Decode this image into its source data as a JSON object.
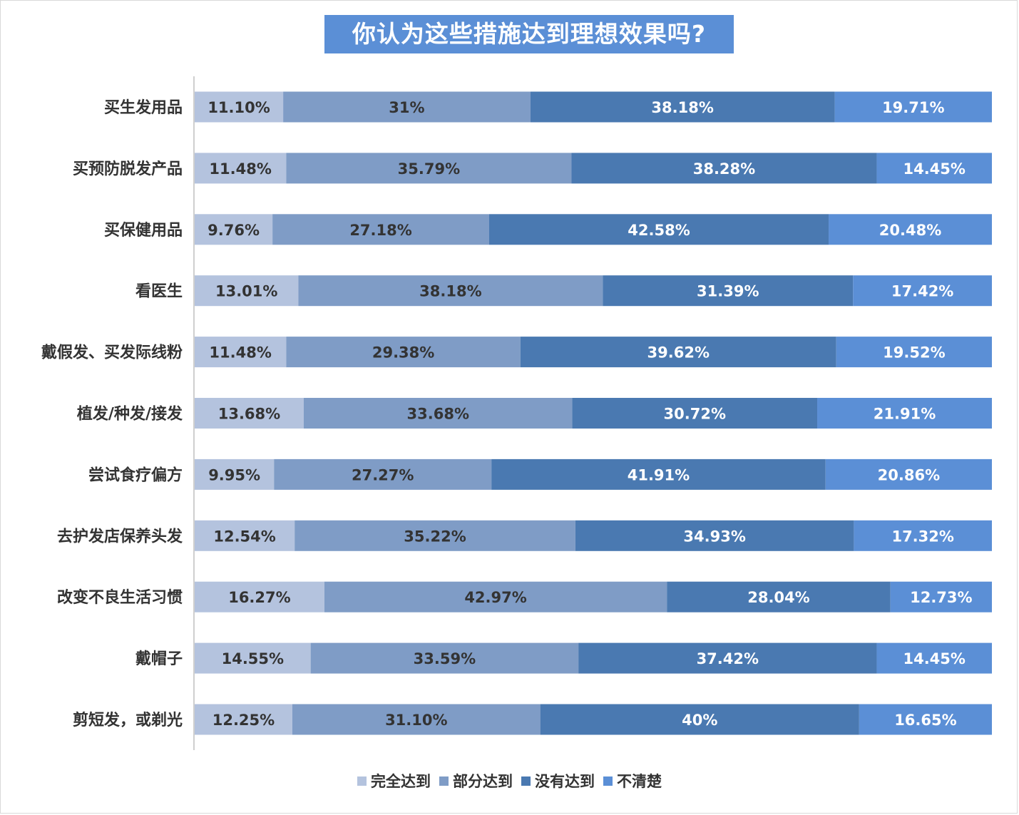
{
  "title": "你认为这些措施达到理想效果吗?",
  "colors": [
    "#b4c3de",
    "#7f9cc6",
    "#4a79b1",
    "#5b8fd6"
  ],
  "label_colors": [
    "#333333",
    "#333333",
    "#ffffff",
    "#ffffff"
  ],
  "chart_data": {
    "type": "bar",
    "orientation": "horizontal",
    "stacked": true,
    "percent": true,
    "title": "你认为这些措施达到理想效果吗?",
    "legend_position": "bottom",
    "categories": [
      "买生发用品",
      "买预防脱发产品",
      "买保健用品",
      "看医生",
      "戴假发、买发际线粉",
      "植发/种发/接发",
      "尝试食疗偏方",
      "去护发店保养头发",
      "改变不良生活习惯",
      "戴帽子",
      "剪短发，或剃光"
    ],
    "series": [
      {
        "name": "完全达到",
        "values": [
          11.1,
          11.48,
          9.76,
          13.01,
          11.48,
          13.68,
          9.95,
          12.54,
          16.27,
          14.55,
          12.25
        ],
        "labels": [
          "11.10%",
          "11.48%",
          "9.76%",
          "13.01%",
          "11.48%",
          "13.68%",
          "9.95%",
          "12.54%",
          "16.27%",
          "14.55%",
          "12.25%"
        ]
      },
      {
        "name": "部分达到",
        "values": [
          31,
          35.79,
          27.18,
          38.18,
          29.38,
          33.68,
          27.27,
          35.22,
          42.97,
          33.59,
          31.1
        ],
        "labels": [
          "31%",
          "35.79%",
          "27.18%",
          "38.18%",
          "29.38%",
          "33.68%",
          "27.27%",
          "35.22%",
          "42.97%",
          "33.59%",
          "31.10%"
        ]
      },
      {
        "name": "没有达到",
        "values": [
          38.18,
          38.28,
          42.58,
          31.39,
          39.62,
          30.72,
          41.91,
          34.93,
          28.04,
          37.42,
          40
        ],
        "labels": [
          "38.18%",
          "38.28%",
          "42.58%",
          "31.39%",
          "39.62%",
          "30.72%",
          "41.91%",
          "34.93%",
          "28.04%",
          "37.42%",
          "40%"
        ]
      },
      {
        "name": "不清楚",
        "values": [
          19.71,
          14.45,
          20.48,
          17.42,
          19.52,
          21.91,
          20.86,
          17.32,
          12.73,
          14.45,
          16.65
        ],
        "labels": [
          "19.71%",
          "14.45%",
          "20.48%",
          "17.42%",
          "19.52%",
          "21.91%",
          "20.86%",
          "17.32%",
          "12.73%",
          "14.45%",
          "16.65%"
        ]
      }
    ]
  }
}
